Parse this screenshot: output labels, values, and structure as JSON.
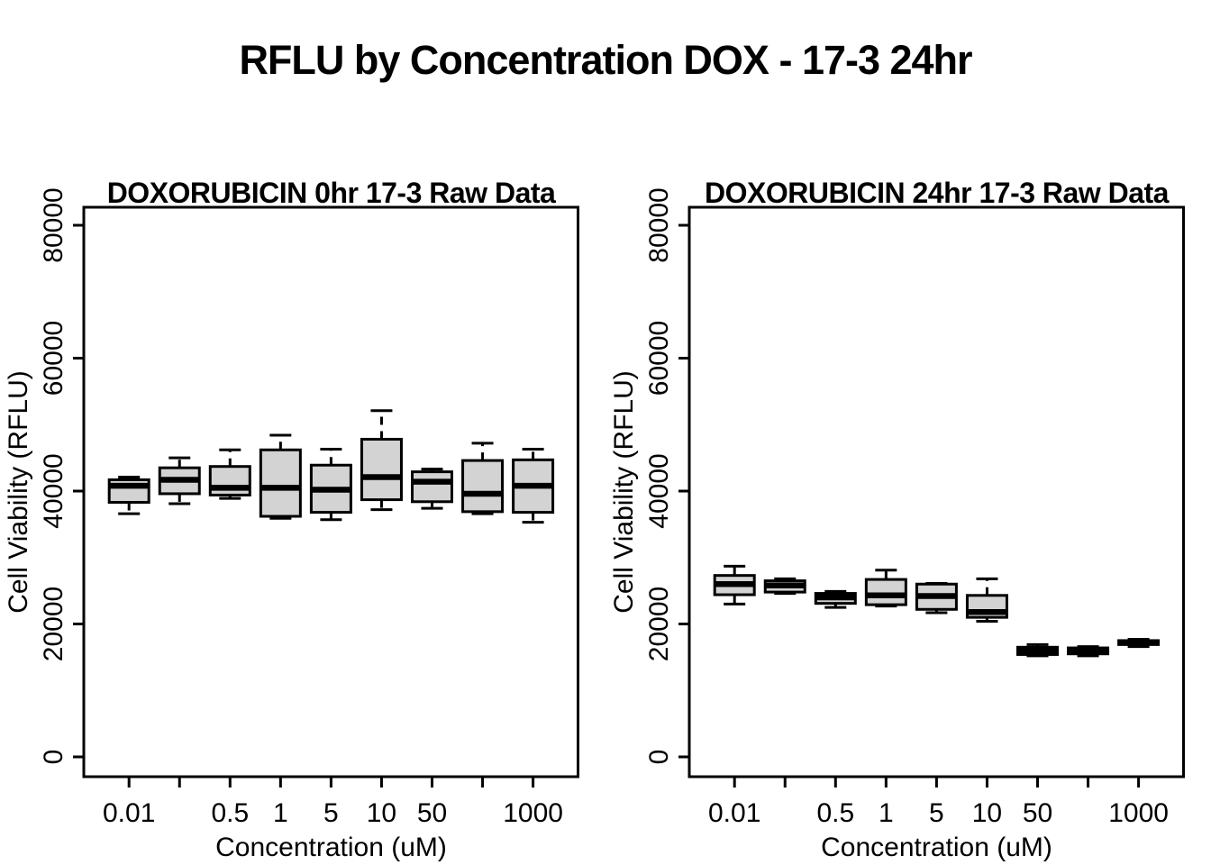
{
  "main_title": "RFLU by Concentration DOX - 17-3 24hr",
  "colors": {
    "box_fill": "#d3d3d3",
    "stroke": "#000000",
    "background": "#ffffff"
  },
  "chart_data": [
    {
      "type": "boxplot",
      "title": "DOXORUBICIN 0hr 17-3 Raw Data",
      "xlabel": "Concentration (uM)",
      "ylabel": "Cell Viability (RFLU)",
      "ylim": [
        -3000,
        82700
      ],
      "grid": false,
      "yticks": [
        {
          "value": 0,
          "label": "0"
        },
        {
          "value": 20000,
          "label": "20000"
        },
        {
          "value": 40000,
          "label": "40000"
        },
        {
          "value": 60000,
          "label": "60000"
        },
        {
          "value": 80000,
          "label": "80000"
        }
      ],
      "boxes": [
        {
          "tick_label": "0.01",
          "min": 36600,
          "q1": 38300,
          "median": 40800,
          "q3": 41700,
          "max": 42100
        },
        {
          "tick_label": "",
          "min": 38100,
          "q1": 39600,
          "median": 41700,
          "q3": 43500,
          "max": 45000
        },
        {
          "tick_label": "0.5",
          "min": 38900,
          "q1": 39400,
          "median": 40500,
          "q3": 43700,
          "max": 46200
        },
        {
          "tick_label": "1",
          "min": 35900,
          "q1": 36200,
          "median": 40500,
          "q3": 46200,
          "max": 48400
        },
        {
          "tick_label": "5",
          "min": 35700,
          "q1": 36800,
          "median": 40200,
          "q3": 43900,
          "max": 46300
        },
        {
          "tick_label": "10",
          "min": 37200,
          "q1": 38700,
          "median": 42100,
          "q3": 47800,
          "max": 52100
        },
        {
          "tick_label": "50",
          "min": 37400,
          "q1": 38400,
          "median": 41400,
          "q3": 42900,
          "max": 43300
        },
        {
          "tick_label": "",
          "min": 36600,
          "q1": 36900,
          "median": 39600,
          "q3": 44600,
          "max": 47200
        },
        {
          "tick_label": "1000",
          "min": 35300,
          "q1": 36800,
          "median": 40800,
          "q3": 44700,
          "max": 46300
        }
      ]
    },
    {
      "type": "boxplot",
      "title": "DOXORUBICIN 24hr 17-3 Raw Data",
      "xlabel": "Concentration (uM)",
      "ylabel": "Cell Viability (RFLU)",
      "ylim": [
        -3000,
        82700
      ],
      "grid": false,
      "yticks": [
        {
          "value": 0,
          "label": "0"
        },
        {
          "value": 20000,
          "label": "20000"
        },
        {
          "value": 40000,
          "label": "40000"
        },
        {
          "value": 60000,
          "label": "60000"
        },
        {
          "value": 80000,
          "label": "80000"
        }
      ],
      "boxes": [
        {
          "tick_label": "0.01",
          "min": 23000,
          "q1": 24400,
          "median": 26000,
          "q3": 27300,
          "max": 28700
        },
        {
          "tick_label": "",
          "min": 24600,
          "q1": 24800,
          "median": 25800,
          "q3": 26500,
          "max": 26800
        },
        {
          "tick_label": "0.5",
          "min": 22500,
          "q1": 23100,
          "median": 24000,
          "q3": 24600,
          "max": 24900
        },
        {
          "tick_label": "1",
          "min": 22700,
          "q1": 22900,
          "median": 24300,
          "q3": 26700,
          "max": 28100
        },
        {
          "tick_label": "5",
          "min": 21700,
          "q1": 22200,
          "median": 24200,
          "q3": 26000,
          "max": 26100
        },
        {
          "tick_label": "10",
          "min": 20400,
          "q1": 21000,
          "median": 21800,
          "q3": 24300,
          "max": 26800
        },
        {
          "tick_label": "50",
          "min": 15200,
          "q1": 15400,
          "median": 16000,
          "q3": 16500,
          "max": 16900
        },
        {
          "tick_label": "",
          "min": 15200,
          "q1": 15500,
          "median": 16000,
          "q3": 16400,
          "max": 16600
        },
        {
          "tick_label": "1000",
          "min": 16600,
          "q1": 16900,
          "median": 17200,
          "q3": 17500,
          "max": 17700
        }
      ]
    }
  ]
}
